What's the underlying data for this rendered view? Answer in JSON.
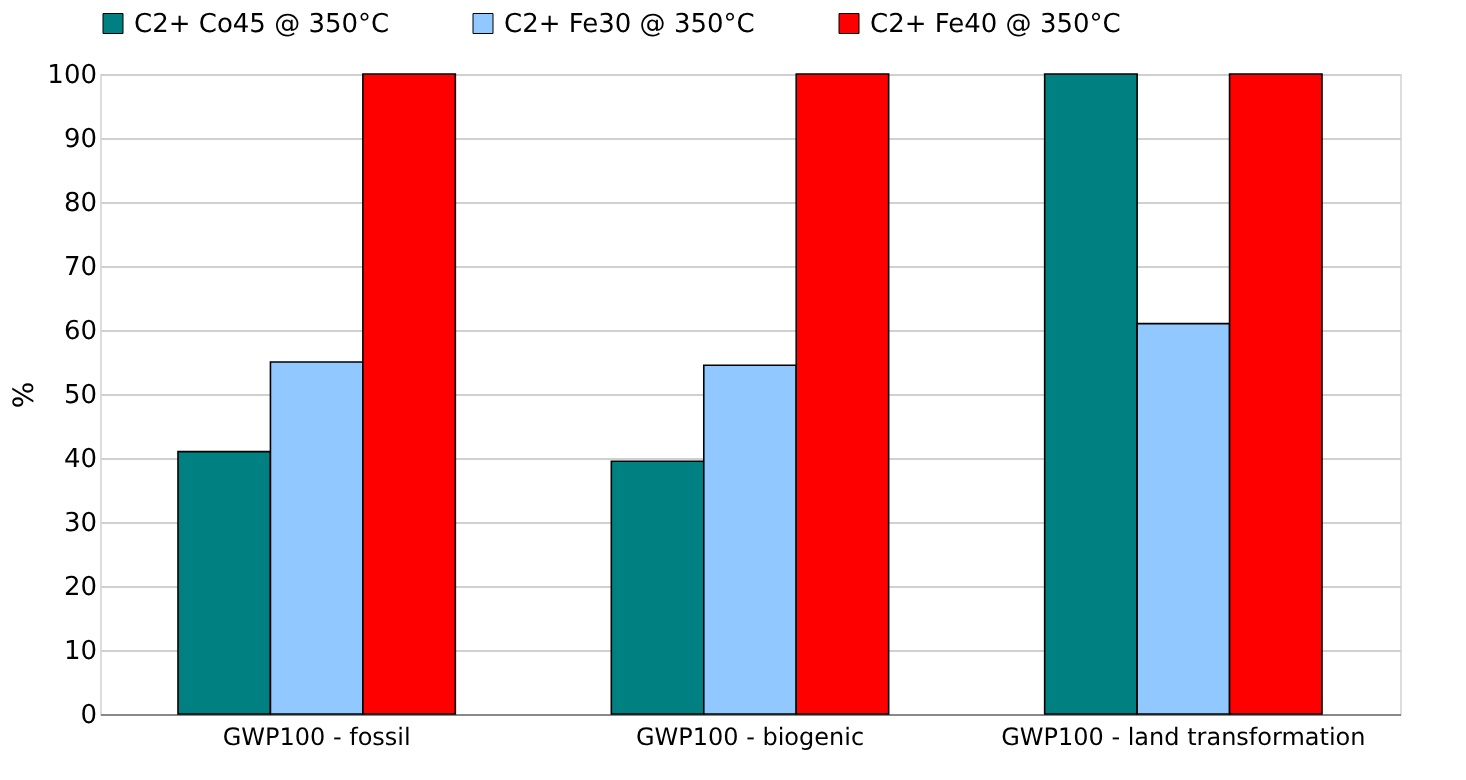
{
  "chart_data": {
    "type": "bar",
    "ylabel": "%",
    "categories": [
      "GWP100 - fossil",
      "GWP100 - biogenic",
      "GWP100 - land transformation"
    ],
    "series": [
      {
        "name": "C2+ Co45 @ 350°C",
        "color": "#008080",
        "values": [
          41,
          39.5,
          100
        ]
      },
      {
        "name": "C2+ Fe30 @ 350°C",
        "color": "#91c8ff",
        "values": [
          55,
          54.5,
          61
        ]
      },
      {
        "name": "C2+ Fe40 @ 350°C",
        "color": "#ff0000",
        "values": [
          100,
          100,
          100
        ]
      }
    ],
    "ylim": [
      0,
      100
    ],
    "yticks": [
      0,
      10,
      20,
      30,
      40,
      50,
      60,
      70,
      80,
      90,
      100
    ],
    "grid": "y",
    "legend": "top"
  }
}
